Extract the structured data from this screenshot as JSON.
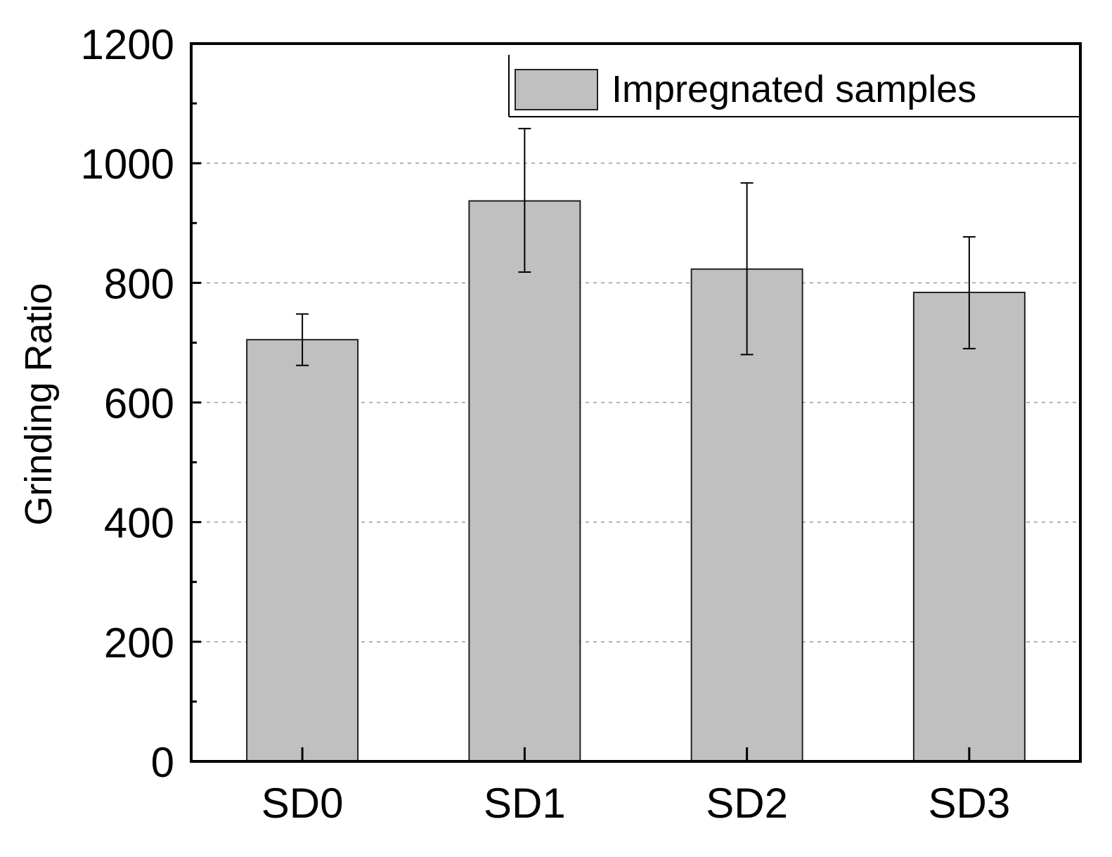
{
  "chart_data": {
    "type": "bar",
    "categories": [
      "SD0",
      "SD1",
      "SD2",
      "SD3"
    ],
    "series": [
      {
        "name": "Impregnated samples",
        "values": [
          705,
          937,
          823,
          784
        ],
        "error_low": [
          662,
          818,
          680,
          690
        ],
        "error_high": [
          748,
          1058,
          967,
          877
        ]
      }
    ],
    "title": "",
    "xlabel": "",
    "ylabel": "Grinding Ratio",
    "ylim": [
      0,
      1200
    ],
    "yticks": [
      0,
      200,
      400,
      600,
      800,
      1000,
      1200
    ],
    "ytick_labels": [
      "0",
      "200",
      "400",
      "600",
      "800",
      "1000",
      "1200"
    ],
    "grid": true,
    "legend": {
      "position": "top-right",
      "label": "Impregnated samples"
    },
    "colors": {
      "bar_fill": "#c0c0c0",
      "bar_stroke": "#222222",
      "axis": "#000000",
      "grid": "#999999"
    }
  }
}
